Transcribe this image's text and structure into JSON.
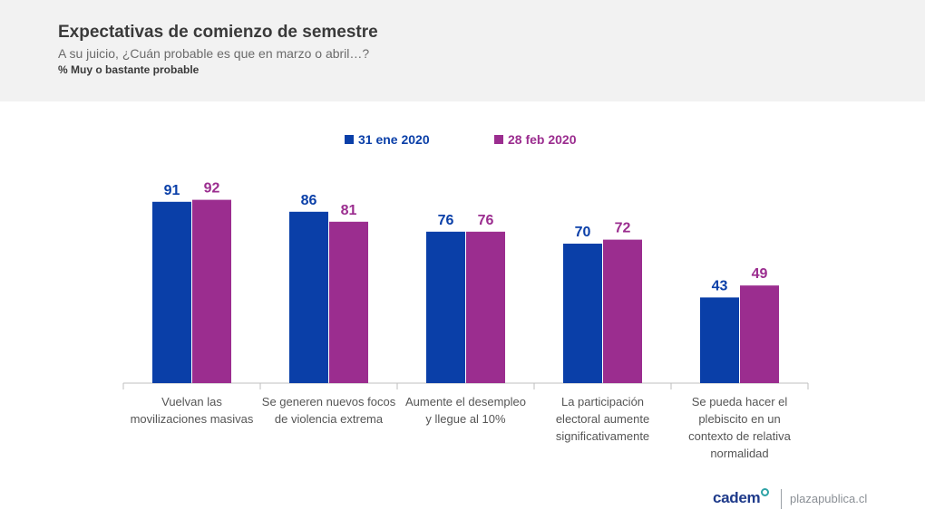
{
  "header": {
    "title": "Expectativas de comienzo de semestre",
    "subtitle": "A su juicio, ¿Cuán probable es que en marzo o abril…?",
    "note": "% Muy o bastante probable"
  },
  "chart_data": {
    "type": "bar",
    "categories": [
      [
        "Vuelvan las",
        "movilizaciones masivas"
      ],
      [
        "Se generen nuevos focos",
        "de violencia extrema"
      ],
      [
        "Aumente el desempleo",
        "y llegue al 10%"
      ],
      [
        "La participación",
        "electoral aumente",
        "significativamente"
      ],
      [
        "Se pueda hacer el",
        "plebiscito en un",
        "contexto de relativa",
        "normalidad"
      ]
    ],
    "series": [
      {
        "name": "31 ene 2020",
        "color": "#0a3fa8",
        "values": [
          91,
          86,
          76,
          70,
          43
        ]
      },
      {
        "name": "28 feb 2020",
        "color": "#9b2d8f",
        "values": [
          92,
          81,
          76,
          72,
          49
        ]
      }
    ],
    "ylim": [
      0,
      100
    ],
    "legend": "top-center",
    "grid": false
  },
  "footer": {
    "brand": "cadem",
    "site": "plazapublica.cl"
  }
}
